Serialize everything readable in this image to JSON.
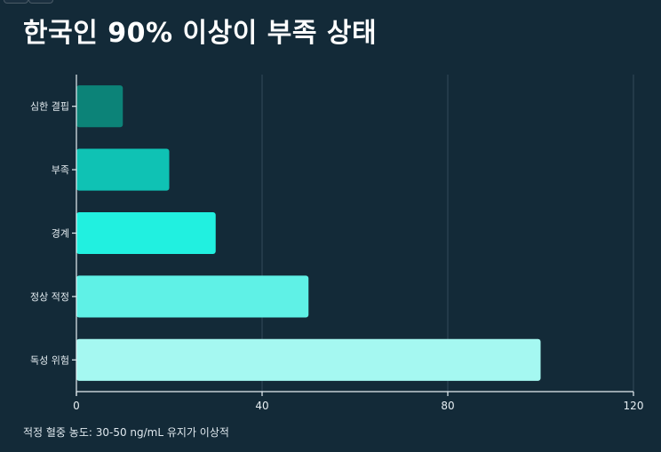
{
  "title": "한국인 90% 이상이 부족 상태",
  "footnote": "적정 혈중 농도: 30-50 ng/mL 유지가 이상적",
  "colors": {
    "background": "#132a38",
    "grid": "#33495a",
    "axis": "#e6eef2",
    "tick_text": "#e6eef2"
  },
  "chart_data": {
    "type": "bar",
    "orientation": "horizontal",
    "categories": [
      "심한 결핍",
      "부족",
      "경계",
      "정상 적정",
      "독성 위험"
    ],
    "values": [
      10,
      20,
      30,
      50,
      100
    ],
    "bar_colors": [
      "#0c8378",
      "#0fc2b4",
      "#21f0e0",
      "#5ff1e6",
      "#a5f8f1"
    ],
    "xlim": [
      0,
      120
    ],
    "xticks": [
      0,
      40,
      80,
      120
    ],
    "xlabel": "",
    "ylabel": "",
    "grid": true,
    "legend": false
  }
}
